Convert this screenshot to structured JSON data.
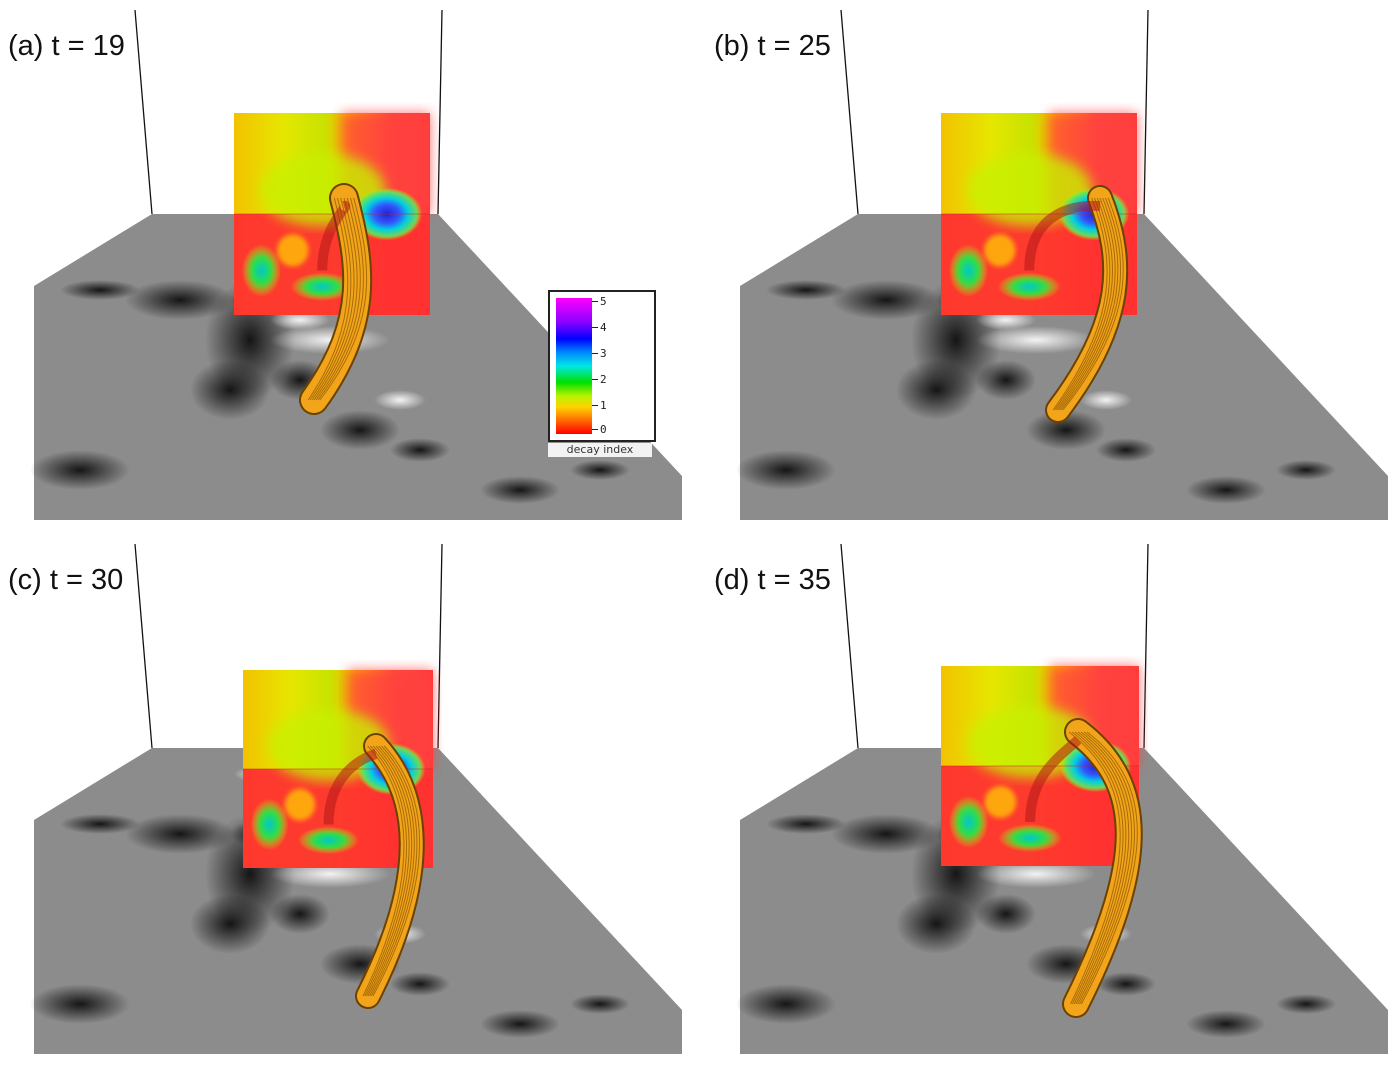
{
  "panels": [
    {
      "label": "(a) t = 19"
    },
    {
      "label": "(b) t = 25"
    },
    {
      "label": "(c) t = 30"
    },
    {
      "label": "(d) t = 35"
    }
  ],
  "colorbar": {
    "title": "decay index",
    "ticks": [
      "5",
      "4",
      "3",
      "2",
      "1",
      "0"
    ],
    "colors": [
      "#ff0000",
      "#ffa000",
      "#b7f200",
      "#00e000",
      "#00e6e6",
      "#0000ff",
      "#8800ff",
      "#ff00ff"
    ]
  },
  "colors": {
    "flux_rope": "#f2a51a",
    "magnetogram_base": "#8c8c8c"
  }
}
